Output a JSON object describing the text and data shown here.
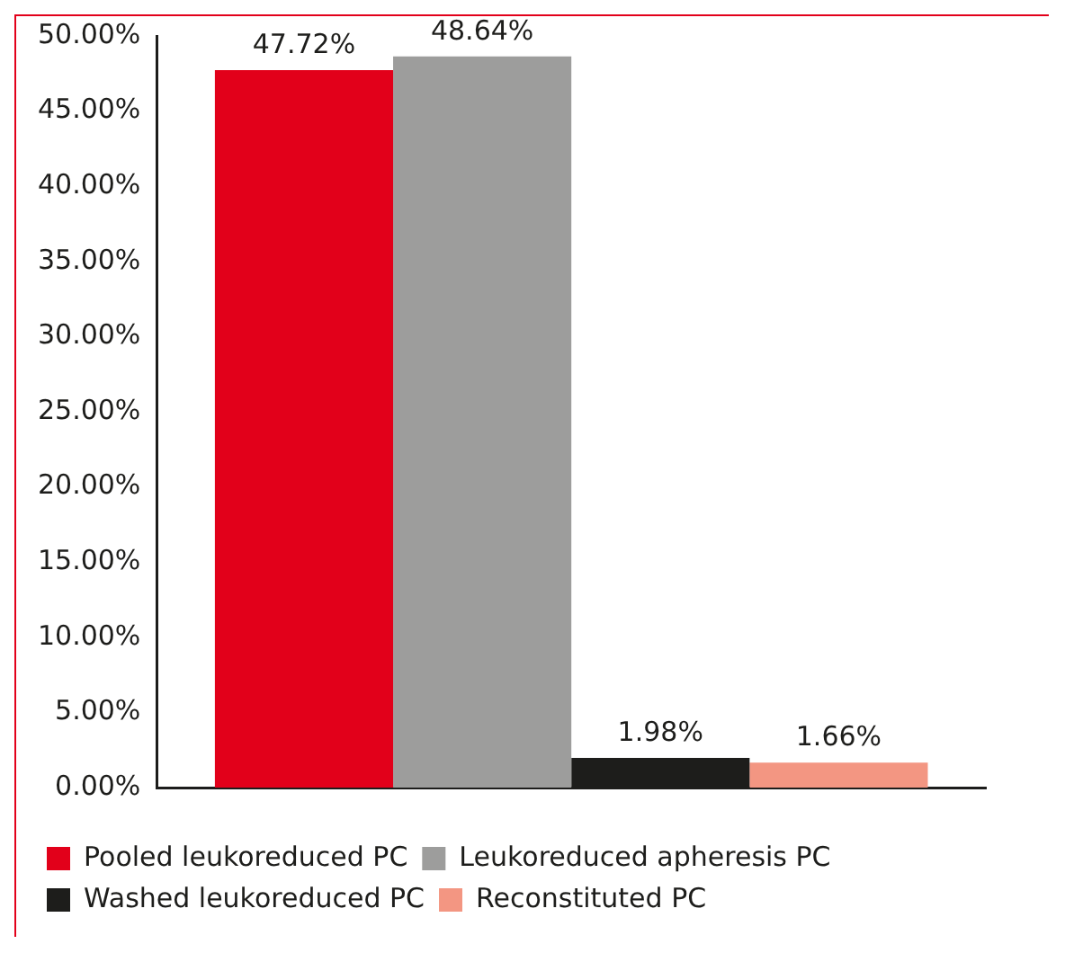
{
  "chart_data": {
    "type": "bar",
    "categories": [
      null
    ],
    "series": [
      {
        "name": "Pooled leukoreduced PC",
        "color": "#e2001a",
        "values": [
          47.72
        ],
        "value_labels": [
          "47.72%"
        ]
      },
      {
        "name": "Leukoreduced apheresis PC",
        "color": "#9d9d9c",
        "values": [
          48.64
        ],
        "value_labels": [
          "48.64%"
        ]
      },
      {
        "name": "Washed leukoreduced PC",
        "color": "#1d1d1b",
        "values": [
          1.98
        ],
        "value_labels": [
          "1.98%"
        ]
      },
      {
        "name": "Reconstituted PC",
        "color": "#f39682",
        "values": [
          1.66
        ],
        "value_labels": [
          "1.66%"
        ]
      }
    ],
    "ylim": [
      0,
      50
    ],
    "yticks": [
      {
        "value": 0,
        "label": "0.00%"
      },
      {
        "value": 5,
        "label": "5.00%"
      },
      {
        "value": 10,
        "label": "10.00%"
      },
      {
        "value": 15,
        "label": "15.00%"
      },
      {
        "value": 20,
        "label": "20.00%"
      },
      {
        "value": 25,
        "label": "25.00%"
      },
      {
        "value": 30,
        "label": "30.00%"
      },
      {
        "value": 35,
        "label": "35.00%"
      },
      {
        "value": 40,
        "label": "40.00%"
      },
      {
        "value": 45,
        "label": "45.00%"
      },
      {
        "value": 50,
        "label": "50.00%"
      }
    ],
    "grid": false,
    "legend": "bottom"
  }
}
